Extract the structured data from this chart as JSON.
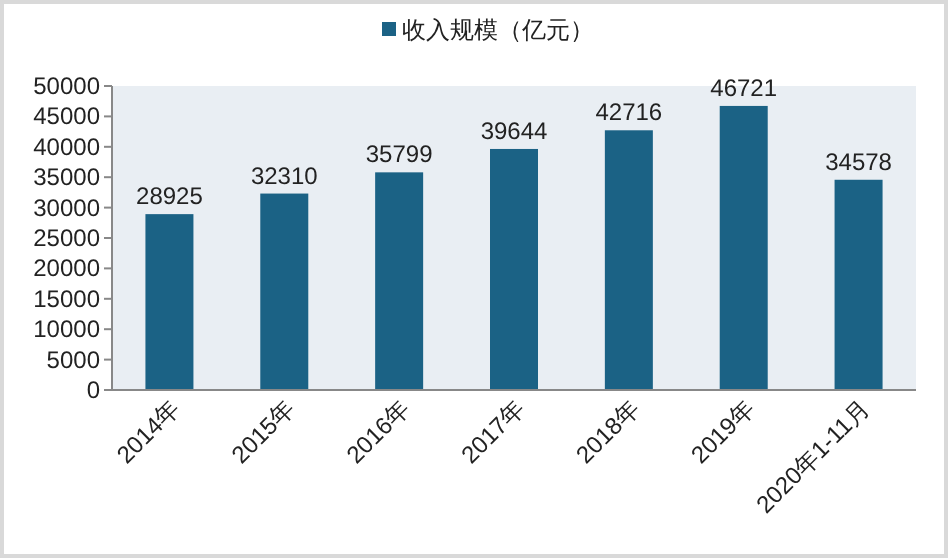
{
  "chart_data": {
    "type": "bar",
    "categories": [
      "2014年",
      "2015年",
      "2016年",
      "2017年",
      "2018年",
      "2019年",
      "2020年1-11月"
    ],
    "series": [
      {
        "name": "收入规模（亿元）",
        "color": "#1b6285",
        "values": [
          28925,
          32310,
          35799,
          39644,
          42716,
          46721,
          34578
        ]
      }
    ],
    "ylim": [
      0,
      50000
    ],
    "yticks": [
      0,
      5000,
      10000,
      15000,
      20000,
      25000,
      30000,
      35000,
      40000,
      45000,
      50000
    ],
    "grid": false,
    "legend": "top",
    "data_labels": true
  }
}
